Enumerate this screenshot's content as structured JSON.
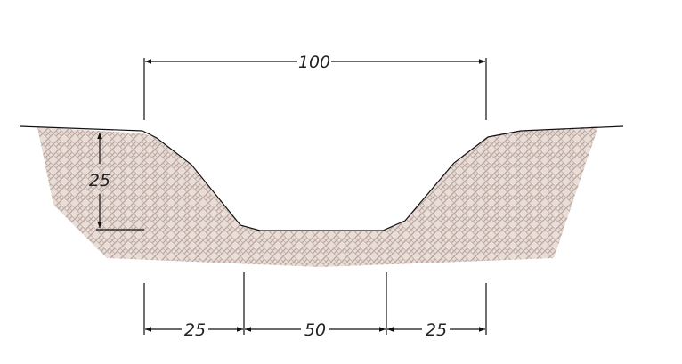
{
  "dimensions": {
    "top_width": "100",
    "depth": "25",
    "left_slope": "25",
    "bottom_width": "50",
    "right_slope": "25"
  },
  "colors": {
    "soil_fill": "#e6d8d2",
    "soil_hatch": "#b7a29a",
    "line": "#111111"
  }
}
